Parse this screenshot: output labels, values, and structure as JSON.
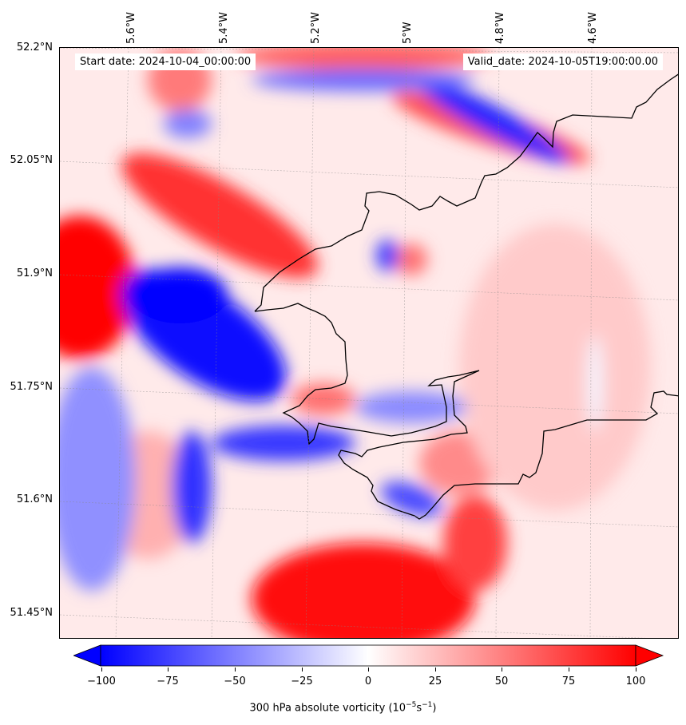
{
  "map": {
    "start_date": "Start date: 2024-10-04_00:00:00",
    "valid_date": "Valid_date: 2024-10-05T19:00:00.00",
    "lon_labels": [
      "5.6°W",
      "5.4°W",
      "5.2°W",
      "5°W",
      "4.8°W",
      "4.6°W"
    ],
    "lat_labels": [
      "52.2°N",
      "52.05°N",
      "51.9°N",
      "51.75°N",
      "51.6°N",
      "51.45°N"
    ],
    "field": "300 hPa absolute vorticity",
    "colormap": "bwr",
    "color_neg": "#0000ff",
    "color_zero": "#ffffff",
    "color_pos": "#ff0000"
  },
  "colorbar": {
    "ticks": [
      "−100",
      "−75",
      "−50",
      "−25",
      "0",
      "25",
      "50",
      "75",
      "100"
    ],
    "range": [
      -100,
      100
    ],
    "label_text": "300 hPa absolute vorticity (10",
    "label_exp1": "−5",
    "label_mid": "s",
    "label_exp2": "−1",
    "label_end": ")"
  }
}
